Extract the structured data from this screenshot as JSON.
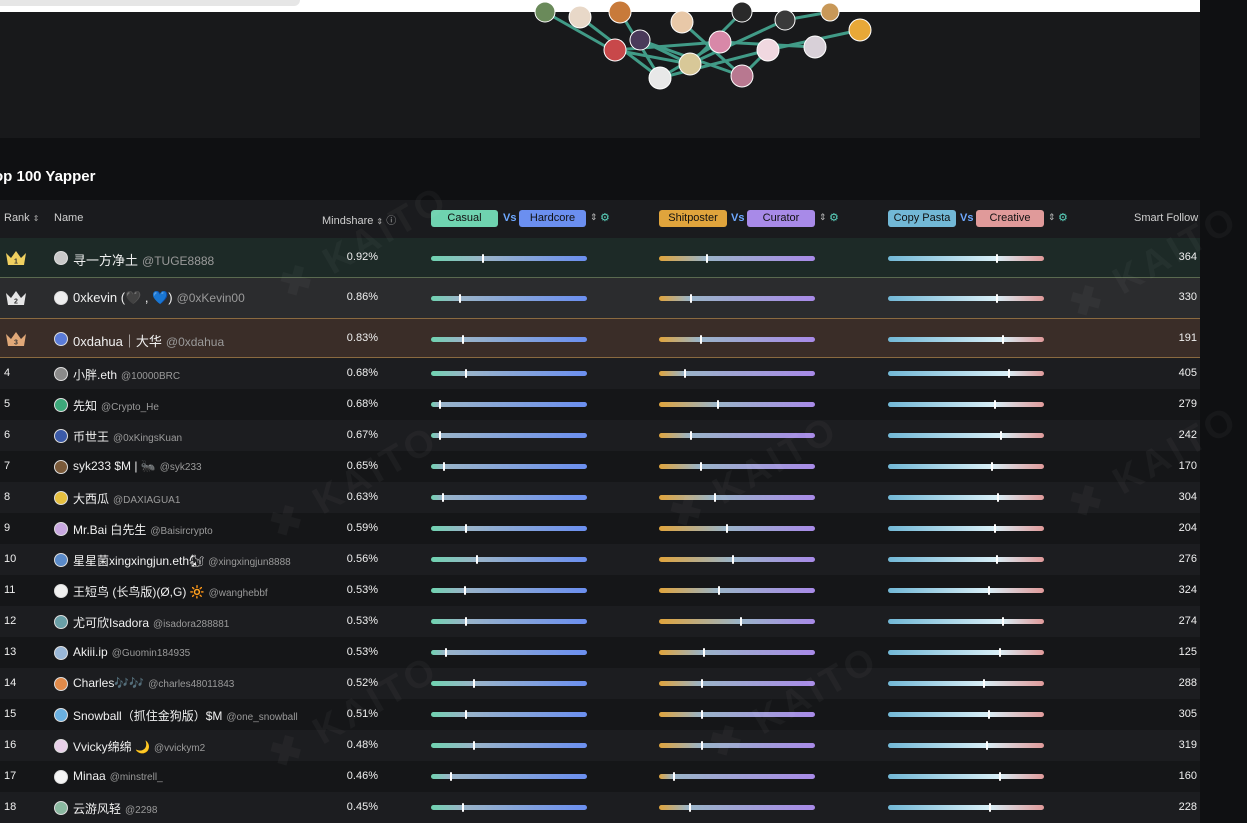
{
  "section": {
    "title": "op 100 Yapper"
  },
  "headers": {
    "rank": "Rank",
    "name": "Name",
    "mindshare": "Mindshare",
    "casual": "Casual",
    "vs1": "Vs",
    "hardcore": "Hardcore",
    "shitposter": "Shitposter",
    "vs2": "Vs",
    "curator": "Curator",
    "copypasta": "Copy Pasta",
    "vs3": "Vs",
    "creative": "Creative",
    "smart_followers": "Smart Follow"
  },
  "colors": {
    "casual": "#6fd3b0",
    "hardcore": "#6b8ff0",
    "shitposter": "#e0a43c",
    "curator": "#a88ae8",
    "copypasta": "#72b8d6",
    "creative": "#e09a9a",
    "gold_row": "#1d2a27",
    "silver_row": "#2b2c2e",
    "bronze_row": "#3a2d28"
  },
  "rows": [
    {
      "rank": "1",
      "name": "寻一方净土",
      "handle": "@TUGE8888",
      "mindshare": "0.92%",
      "casual_hardcore": 0.33,
      "shit_curator": 0.3,
      "copy_creative": 0.69,
      "smart": "364",
      "avatar": "#c9c9c9"
    },
    {
      "rank": "2",
      "name": "0xkevin (🖤 , 💙)",
      "handle": "@0xKevin00",
      "mindshare": "0.86%",
      "casual_hardcore": 0.18,
      "shit_curator": 0.2,
      "copy_creative": 0.69,
      "smart": "330",
      "avatar": "#eeeeee"
    },
    {
      "rank": "3",
      "name": "0xdahua｜大华",
      "handle": "@0xdahua",
      "mindshare": "0.83%",
      "casual_hardcore": 0.2,
      "shit_curator": 0.26,
      "copy_creative": 0.73,
      "smart": "191",
      "avatar": "#5a7bd8"
    },
    {
      "rank": "4",
      "name": "小胖.eth",
      "handle": "@10000BRC",
      "mindshare": "0.68%",
      "casual_hardcore": 0.22,
      "shit_curator": 0.16,
      "copy_creative": 0.77,
      "smart": "405",
      "avatar": "#8a8a8a"
    },
    {
      "rank": "5",
      "name": "先知",
      "handle": "@Crypto_He",
      "mindshare": "0.68%",
      "casual_hardcore": 0.05,
      "shit_curator": 0.37,
      "copy_creative": 0.68,
      "smart": "279",
      "avatar": "#3da87a"
    },
    {
      "rank": "6",
      "name": "币世王",
      "handle": "@0xKingsKuan",
      "mindshare": "0.67%",
      "casual_hardcore": 0.05,
      "shit_curator": 0.2,
      "copy_creative": 0.72,
      "smart": "242",
      "avatar": "#3b5aa8"
    },
    {
      "rank": "7",
      "name": "syk233 $M | 🐜",
      "handle": "@syk233",
      "mindshare": "0.65%",
      "casual_hardcore": 0.08,
      "shit_curator": 0.26,
      "copy_creative": 0.66,
      "smart": "170",
      "avatar": "#7a5a3a"
    },
    {
      "rank": "8",
      "name": "大西瓜",
      "handle": "@DAXIAGUA1",
      "mindshare": "0.63%",
      "casual_hardcore": 0.07,
      "shit_curator": 0.35,
      "copy_creative": 0.7,
      "smart": "304",
      "avatar": "#e6c040"
    },
    {
      "rank": "9",
      "name": "Mr.Bai 白先生",
      "handle": "@Baisircrypto",
      "mindshare": "0.59%",
      "casual_hardcore": 0.22,
      "shit_curator": 0.43,
      "copy_creative": 0.68,
      "smart": "204",
      "avatar": "#c8a8e0"
    },
    {
      "rank": "10",
      "name": "星星菌xingxingjun.eth🐿",
      "handle": "@xingxingjun8888",
      "mindshare": "0.56%",
      "casual_hardcore": 0.29,
      "shit_curator": 0.47,
      "copy_creative": 0.69,
      "smart": "276",
      "avatar": "#5a8ac8"
    },
    {
      "rank": "11",
      "name": "王短鸟 (长鸟版)(Ø,G) 🔆",
      "handle": "@wanghebbf",
      "mindshare": "0.53%",
      "casual_hardcore": 0.21,
      "shit_curator": 0.38,
      "copy_creative": 0.64,
      "smart": "324",
      "avatar": "#f0f0f0"
    },
    {
      "rank": "12",
      "name": "尤可欣Isadora",
      "handle": "@isadora288881",
      "mindshare": "0.53%",
      "casual_hardcore": 0.22,
      "shit_curator": 0.52,
      "copy_creative": 0.73,
      "smart": "274",
      "avatar": "#6aa0a8"
    },
    {
      "rank": "13",
      "name": "Akiii.ip",
      "handle": "@Guomin184935",
      "mindshare": "0.53%",
      "casual_hardcore": 0.09,
      "shit_curator": 0.28,
      "copy_creative": 0.71,
      "smart": "125",
      "avatar": "#9ab8d8"
    },
    {
      "rank": "14",
      "name": "Charles🎶🎶",
      "handle": "@charles48011843",
      "mindshare": "0.52%",
      "casual_hardcore": 0.27,
      "shit_curator": 0.27,
      "copy_creative": 0.61,
      "smart": "288",
      "avatar": "#e08a4a"
    },
    {
      "rank": "15",
      "name": "Snowball（抓住金狗版）$M",
      "handle": "@one_snowball",
      "mindshare": "0.51%",
      "casual_hardcore": 0.22,
      "shit_curator": 0.27,
      "copy_creative": 0.64,
      "smart": "305",
      "avatar": "#6ab0e0"
    },
    {
      "rank": "16",
      "name": "Vvicky绵绵 🌙",
      "handle": "@vvickym2",
      "mindshare": "0.48%",
      "casual_hardcore": 0.27,
      "shit_curator": 0.27,
      "copy_creative": 0.63,
      "smart": "319",
      "avatar": "#e8d0e8"
    },
    {
      "rank": "17",
      "name": "Minaa",
      "handle": "@minstrell_",
      "mindshare": "0.46%",
      "casual_hardcore": 0.12,
      "shit_curator": 0.09,
      "copy_creative": 0.71,
      "smart": "160",
      "avatar": "#f5f5f5"
    },
    {
      "rank": "18",
      "name": "云游风轻",
      "handle": "@2298",
      "mindshare": "0.45%",
      "casual_hardcore": 0.2,
      "shit_curator": 0.19,
      "copy_creative": 0.65,
      "smart": "228",
      "avatar": "#8ab8a0"
    }
  ]
}
